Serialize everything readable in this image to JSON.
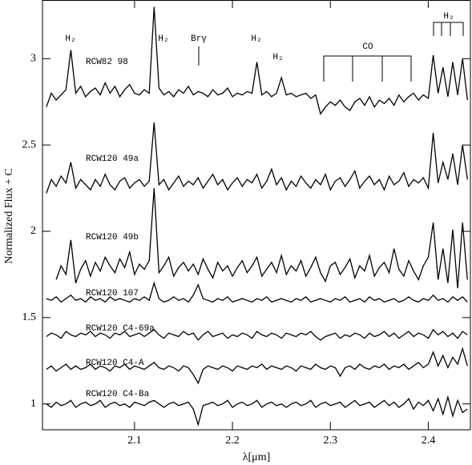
{
  "chart_data": {
    "type": "line",
    "x_label": "λ[μm]",
    "y_label": "Normalized Flux + C",
    "xlim": [
      2.006,
      2.443
    ],
    "ylim": [
      0.85,
      3.34
    ],
    "xticks": [
      2.1,
      2.2,
      2.3,
      2.4
    ],
    "yticks": [
      1,
      1.5,
      2,
      2.5,
      3
    ],
    "annotations": [
      "H₂",
      "H₂",
      "Brγ",
      "H₂",
      "H₂",
      "CO",
      "H₂"
    ],
    "x": [
      2.01,
      2.015,
      2.02,
      2.025,
      2.03,
      2.035,
      2.04,
      2.045,
      2.05,
      2.055,
      2.06,
      2.065,
      2.07,
      2.075,
      2.08,
      2.085,
      2.09,
      2.095,
      2.1,
      2.105,
      2.11,
      2.115,
      2.12,
      2.125,
      2.13,
      2.135,
      2.14,
      2.145,
      2.15,
      2.155,
      2.16,
      2.165,
      2.17,
      2.175,
      2.18,
      2.185,
      2.19,
      2.195,
      2.2,
      2.205,
      2.21,
      2.215,
      2.22,
      2.225,
      2.23,
      2.235,
      2.24,
      2.245,
      2.25,
      2.255,
      2.26,
      2.265,
      2.27,
      2.275,
      2.28,
      2.285,
      2.29,
      2.295,
      2.3,
      2.305,
      2.31,
      2.315,
      2.32,
      2.325,
      2.33,
      2.335,
      2.34,
      2.345,
      2.35,
      2.355,
      2.36,
      2.365,
      2.37,
      2.375,
      2.38,
      2.385,
      2.39,
      2.395,
      2.4,
      2.405,
      2.41,
      2.415,
      2.42,
      2.425,
      2.43,
      2.435,
      2.44
    ],
    "series": [
      {
        "name": "RCW82 98",
        "color": "#000000",
        "values": [
          2.72,
          2.8,
          2.76,
          2.79,
          2.82,
          3.05,
          2.8,
          2.84,
          2.78,
          2.81,
          2.83,
          2.79,
          2.86,
          2.8,
          2.84,
          2.78,
          2.82,
          2.85,
          2.8,
          2.79,
          2.82,
          2.8,
          3.3,
          2.83,
          2.79,
          2.81,
          2.78,
          2.82,
          2.8,
          2.84,
          2.79,
          2.81,
          2.8,
          2.78,
          2.82,
          2.79,
          2.8,
          2.83,
          2.78,
          2.8,
          2.79,
          2.81,
          2.8,
          2.98,
          2.79,
          2.81,
          2.78,
          2.8,
          2.89,
          2.79,
          2.8,
          2.78,
          2.79,
          2.8,
          2.77,
          2.79,
          2.68,
          2.72,
          2.75,
          2.73,
          2.76,
          2.72,
          2.7,
          2.75,
          2.77,
          2.73,
          2.78,
          2.72,
          2.76,
          2.74,
          2.77,
          2.73,
          2.79,
          2.75,
          2.78,
          2.8,
          2.76,
          2.79,
          2.77,
          3.02,
          2.8,
          2.95,
          2.78,
          2.98,
          2.79,
          3.0,
          2.76
        ]
      },
      {
        "name": "RCW120 49a",
        "color": "#000000",
        "values": [
          2.22,
          2.3,
          2.26,
          2.32,
          2.28,
          2.4,
          2.25,
          2.3,
          2.27,
          2.24,
          2.3,
          2.26,
          2.33,
          2.27,
          2.24,
          2.29,
          2.31,
          2.25,
          2.28,
          2.3,
          2.26,
          2.29,
          2.63,
          2.27,
          2.3,
          2.24,
          2.28,
          2.32,
          2.26,
          2.29,
          2.27,
          2.31,
          2.25,
          2.29,
          2.33,
          2.27,
          2.3,
          2.24,
          2.28,
          2.31,
          2.26,
          2.3,
          2.28,
          2.33,
          2.25,
          2.29,
          2.36,
          2.27,
          2.31,
          2.24,
          2.29,
          2.26,
          2.32,
          2.28,
          2.25,
          2.3,
          2.27,
          2.33,
          2.24,
          2.29,
          2.31,
          2.26,
          2.3,
          2.35,
          2.25,
          2.29,
          2.32,
          2.27,
          2.3,
          2.24,
          2.32,
          2.27,
          2.29,
          2.34,
          2.26,
          2.3,
          2.28,
          2.31,
          2.25,
          2.57,
          2.28,
          2.4,
          2.3,
          2.45,
          2.27,
          2.5,
          2.3
        ]
      },
      {
        "name": "RCW120 49b",
        "color": "#000000",
        "values": [
          null,
          null,
          1.72,
          1.8,
          1.75,
          1.95,
          1.7,
          1.78,
          1.83,
          1.74,
          1.82,
          1.77,
          1.85,
          1.8,
          1.76,
          1.84,
          1.79,
          1.88,
          1.75,
          1.81,
          1.78,
          1.83,
          2.25,
          1.76,
          1.8,
          1.85,
          1.74,
          1.79,
          1.82,
          1.77,
          1.81,
          1.75,
          1.84,
          1.78,
          1.73,
          1.82,
          1.77,
          1.8,
          1.74,
          1.79,
          1.83,
          1.76,
          1.8,
          1.85,
          1.74,
          1.78,
          1.82,
          1.76,
          1.86,
          1.75,
          1.8,
          1.77,
          1.83,
          1.74,
          1.79,
          1.85,
          1.76,
          1.71,
          1.8,
          1.82,
          1.75,
          1.79,
          1.84,
          1.73,
          1.8,
          1.77,
          1.86,
          1.74,
          1.79,
          1.82,
          1.76,
          1.9,
          1.78,
          1.74,
          1.83,
          1.77,
          1.72,
          1.8,
          1.85,
          2.05,
          1.72,
          1.9,
          1.7,
          2.01,
          1.67,
          2.05,
          1.72
        ]
      },
      {
        "name": "RCW120 107",
        "color": "#000000",
        "values": [
          1.61,
          1.6,
          1.62,
          1.59,
          1.61,
          1.63,
          1.6,
          1.61,
          1.59,
          1.62,
          1.6,
          1.61,
          1.59,
          1.62,
          1.6,
          1.61,
          1.6,
          1.59,
          1.61,
          1.6,
          1.62,
          1.6,
          1.7,
          1.61,
          1.59,
          1.6,
          1.62,
          1.6,
          1.61,
          1.59,
          1.63,
          1.69,
          1.61,
          1.6,
          1.59,
          1.61,
          1.6,
          1.62,
          1.59,
          1.6,
          1.61,
          1.6,
          1.59,
          1.61,
          1.6,
          1.62,
          1.59,
          1.6,
          1.61,
          1.6,
          1.59,
          1.61,
          1.6,
          1.62,
          1.59,
          1.6,
          1.61,
          1.6,
          1.59,
          1.61,
          1.6,
          1.62,
          1.59,
          1.6,
          1.61,
          1.59,
          1.62,
          1.6,
          1.61,
          1.59,
          1.6,
          1.61,
          1.59,
          1.6,
          1.62,
          1.6,
          1.59,
          1.61,
          1.6,
          1.63,
          1.6,
          1.61,
          1.59,
          1.62,
          1.6,
          1.62,
          1.59
        ]
      },
      {
        "name": "RCW120 C4-69a",
        "color": "#000000",
        "values": [
          1.39,
          1.41,
          1.4,
          1.38,
          1.42,
          1.4,
          1.39,
          1.41,
          1.4,
          1.42,
          1.39,
          1.41,
          1.4,
          1.38,
          1.41,
          1.4,
          1.42,
          1.39,
          1.4,
          1.41,
          1.39,
          1.41,
          1.43,
          1.4,
          1.38,
          1.41,
          1.4,
          1.39,
          1.42,
          1.4,
          1.41,
          1.37,
          1.4,
          1.42,
          1.39,
          1.4,
          1.41,
          1.38,
          1.4,
          1.39,
          1.41,
          1.4,
          1.38,
          1.42,
          1.4,
          1.39,
          1.41,
          1.4,
          1.38,
          1.41,
          1.4,
          1.39,
          1.41,
          1.4,
          1.42,
          1.39,
          1.37,
          1.39,
          1.4,
          1.41,
          1.38,
          1.4,
          1.39,
          1.41,
          1.4,
          1.38,
          1.41,
          1.39,
          1.4,
          1.42,
          1.39,
          1.41,
          1.38,
          1.4,
          1.42,
          1.39,
          1.41,
          1.4,
          1.38,
          1.43,
          1.4,
          1.42,
          1.39,
          1.41,
          1.38,
          1.42,
          1.4
        ]
      },
      {
        "name": "RCW120 C4-A",
        "color": "#000000",
        "values": [
          1.2,
          1.22,
          1.19,
          1.21,
          1.23,
          1.2,
          1.22,
          1.2,
          1.21,
          1.23,
          1.2,
          1.22,
          1.21,
          1.19,
          1.22,
          1.21,
          1.23,
          1.2,
          1.22,
          1.21,
          1.2,
          1.22,
          1.24,
          1.21,
          1.2,
          1.22,
          1.21,
          1.19,
          1.22,
          1.21,
          1.17,
          1.12,
          1.2,
          1.22,
          1.21,
          1.2,
          1.22,
          1.21,
          1.19,
          1.22,
          1.21,
          1.2,
          1.22,
          1.21,
          1.23,
          1.2,
          1.22,
          1.21,
          1.2,
          1.22,
          1.21,
          1.19,
          1.22,
          1.21,
          1.2,
          1.23,
          1.21,
          1.2,
          1.22,
          1.21,
          1.16,
          1.21,
          1.22,
          1.2,
          1.23,
          1.21,
          1.2,
          1.22,
          1.21,
          1.23,
          1.2,
          1.22,
          1.21,
          1.23,
          1.2,
          1.22,
          1.24,
          1.21,
          1.23,
          1.3,
          1.22,
          1.28,
          1.21,
          1.27,
          1.23,
          1.32,
          1.22
        ]
      },
      {
        "name": "RCW120 C4-Ba",
        "color": "#000000",
        "values": [
          1.0,
          0.98,
          1.01,
          0.99,
          1.0,
          1.02,
          0.98,
          1.0,
          1.01,
          0.99,
          1.0,
          1.02,
          0.98,
          1.0,
          1.01,
          0.99,
          1.0,
          0.98,
          1.01,
          1.0,
          0.99,
          1.01,
          1.02,
          1.0,
          0.98,
          1.0,
          1.01,
          0.99,
          1.0,
          1.01,
          0.97,
          0.88,
          0.99,
          1.0,
          1.01,
          0.99,
          1.0,
          1.02,
          0.98,
          1.0,
          1.01,
          0.99,
          1.0,
          1.02,
          0.98,
          1.0,
          1.01,
          0.99,
          1.0,
          0.98,
          1.0,
          1.01,
          0.99,
          1.0,
          1.02,
          0.98,
          1.0,
          1.01,
          0.99,
          1.0,
          1.01,
          0.98,
          1.0,
          1.02,
          0.99,
          1.0,
          1.01,
          0.98,
          1.0,
          1.02,
          0.99,
          1.01,
          0.98,
          1.0,
          1.03,
          0.97,
          1.01,
          0.99,
          1.02,
          0.96,
          1.03,
          0.94,
          1.04,
          0.93,
          1.02,
          0.95,
          0.97
        ]
      }
    ]
  }
}
